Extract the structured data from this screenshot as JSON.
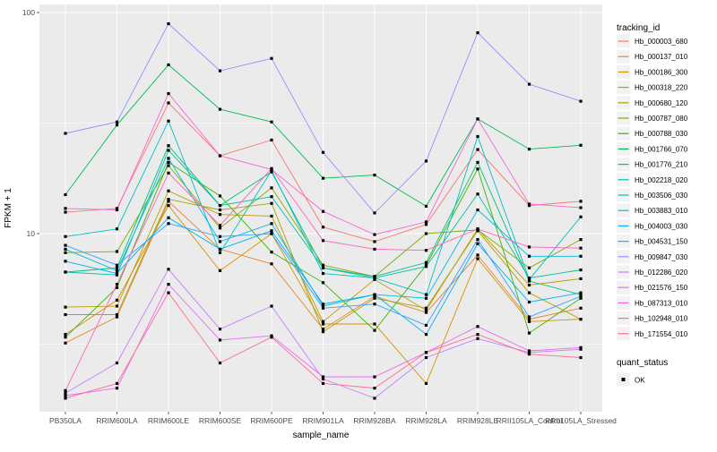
{
  "chart_data": {
    "type": "line",
    "title": "",
    "xlabel": "sample_name",
    "ylabel": "FPKM + 1",
    "y_scale": "log10",
    "ylim": [
      1.55,
      110
    ],
    "y_ticks_major": [
      100,
      10
    ],
    "y_ticks_minor": [
      31.623,
      3.162
    ],
    "grid": true,
    "legend_position": "right",
    "panel_background": "#EBEBEB",
    "grid_color": "#FFFFFF",
    "point_color": "#000000",
    "point_shape": "square",
    "categories": [
      "PB350LA",
      "RRIM600LA",
      "RRIM600LE",
      "RRIM600SE",
      "RRIM600PE",
      "RRIM901LA",
      "RRIM928BA",
      "RRIM928LA",
      "RRIM928LE",
      "RRII105LA_Control",
      "RRII105LA_Stressed"
    ],
    "series": [
      {
        "name": "Hb_000003_680",
        "color": "#F8766D",
        "values": [
          12.5,
          13,
          39,
          22.5,
          26.5,
          10.7,
          9.2,
          11.0,
          24,
          13.4,
          14.0
        ]
      },
      {
        "name": "Hb_000137_010",
        "color": "#EA8331",
        "values": [
          3.2,
          4.2,
          14,
          8.5,
          7.3,
          3.7,
          5.2,
          4.4,
          8.0,
          4.1,
          4.6
        ]
      },
      {
        "name": "Hb_000186_300",
        "color": "#D89000",
        "values": [
          3.5,
          5.0,
          13.4,
          6.8,
          10.0,
          3.9,
          3.9,
          2.1,
          7.7,
          4.0,
          4.1
        ]
      },
      {
        "name": "Hb_000318_220",
        "color": "#C09B00",
        "values": [
          4.65,
          4.7,
          15.6,
          12.2,
          12.0,
          4.0,
          6.2,
          4.5,
          10.5,
          5.85,
          6.25
        ]
      },
      {
        "name": "Hb_000680_120",
        "color": "#A3A500",
        "values": [
          4.3,
          4.3,
          14.3,
          12.8,
          13.7,
          3.6,
          5.1,
          4.6,
          10.3,
          5.4,
          4.1
        ]
      },
      {
        "name": "Hb_000787_080",
        "color": "#7CAE00",
        "values": [
          8.2,
          8.3,
          20.3,
          10.6,
          16.1,
          7.2,
          6.4,
          10.0,
          10.4,
          7.0,
          9.4
        ]
      },
      {
        "name": "Hb_000788_030",
        "color": "#39B600",
        "values": [
          3.4,
          5.7,
          21,
          14.8,
          8.25,
          6.0,
          3.65,
          7.2,
          19.6,
          3.55,
          5.1
        ]
      },
      {
        "name": "Hb_001766_070",
        "color": "#00BB4E",
        "values": [
          15,
          31,
          58,
          36.5,
          32,
          17.8,
          18.4,
          13.3,
          33,
          24.1,
          25.1
        ]
      },
      {
        "name": "Hb_001776_210",
        "color": "#00BF7D",
        "values": [
          6.7,
          7.0,
          25,
          13.4,
          19.0,
          7.0,
          6.4,
          7.4,
          21,
          6.1,
          5.3
        ]
      },
      {
        "name": "Hb_002218_020",
        "color": "#00C1A3",
        "values": [
          6.7,
          6.5,
          23.8,
          13.4,
          14.7,
          7.0,
          6.3,
          7.1,
          15.1,
          6.3,
          6.85
        ]
      },
      {
        "name": "Hb_003506_030",
        "color": "#00BFC4",
        "values": [
          9.7,
          10.5,
          32.3,
          8.2,
          19.3,
          6.6,
          6.3,
          5.3,
          27.5,
          6.2,
          11.9
        ]
      },
      {
        "name": "Hb_003883_010",
        "color": "#00BAE0",
        "values": [
          8.5,
          6.8,
          21.9,
          9.2,
          11.1,
          4.7,
          5.3,
          5.1,
          12.8,
          7.9,
          7.9
        ]
      },
      {
        "name": "Hb_004003_030",
        "color": "#00B0F6",
        "values": [
          7.5,
          6.6,
          11.8,
          8.5,
          10.3,
          4.8,
          5.3,
          3.5,
          9.0,
          4.9,
          5.4
        ]
      },
      {
        "name": "Hb_004531_150",
        "color": "#35A2FF",
        "values": [
          8.85,
          7.2,
          11.1,
          9.7,
          10.0,
          4.6,
          4.8,
          3.85,
          9.4,
          4.2,
          5.2
        ]
      },
      {
        "name": "Hb_009847_030",
        "color": "#9590FF",
        "values": [
          28.4,
          32,
          89,
          54.5,
          62,
          23.3,
          12.4,
          21.3,
          81,
          47.4,
          39.7
        ]
      },
      {
        "name": "Hb_012286_020",
        "color": "#C77CFF",
        "values": [
          1.9,
          2.6,
          6.9,
          3.7,
          4.7,
          2.2,
          1.8,
          2.75,
          3.35,
          2.9,
          3.0
        ]
      },
      {
        "name": "Hb_021576_150",
        "color": "#E76BF3",
        "values": [
          1.85,
          2.0,
          5.9,
          3.3,
          3.45,
          2.25,
          2.25,
          2.9,
          3.8,
          2.95,
          3.05
        ]
      },
      {
        "name": "Hb_087313_010",
        "color": "#FA62DB",
        "values": [
          13.0,
          12.8,
          43,
          22.5,
          19.5,
          12.6,
          9.9,
          11.3,
          33,
          13.6,
          13.1
        ]
      },
      {
        "name": "Hb_102948_010",
        "color": "#FF62BC",
        "values": [
          1.95,
          5.9,
          18.8,
          10.9,
          19.7,
          9.3,
          8.5,
          8.4,
          10.5,
          8.7,
          8.6
        ]
      },
      {
        "name": "Hb_171554_010",
        "color": "#FF6A98",
        "values": [
          1.8,
          2.1,
          5.4,
          2.6,
          3.4,
          2.1,
          2.0,
          2.9,
          3.5,
          2.85,
          2.75
        ]
      }
    ]
  },
  "axes": {
    "y_tick_labels": [
      "100",
      "10"
    ],
    "y_title": "FPKM + 1",
    "x_title": "sample_name"
  },
  "legend": {
    "tracking_title": "tracking_id",
    "quant_title": "quant_status",
    "quant_items": [
      {
        "label": "OK"
      }
    ]
  }
}
